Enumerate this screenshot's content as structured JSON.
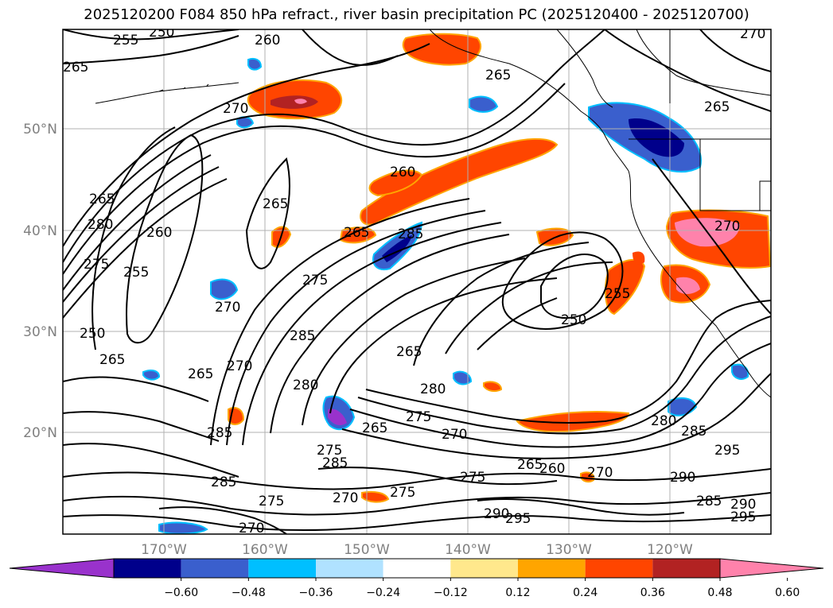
{
  "title": "2025120200 F084 850 hPa refract., river basin precipitation PC (2025120400 - 2025120700)",
  "lat_labels": [
    "50°N",
    "40°N",
    "30°N",
    "20°N"
  ],
  "lon_labels": [
    "170°W",
    "160°W",
    "150°W",
    "140°W",
    "130°W",
    "120°W"
  ],
  "colorbar": {
    "tick_labels": [
      "−0.60",
      "−0.48",
      "−0.36",
      "−0.24",
      "−0.12",
      "0.12",
      "0.24",
      "0.36",
      "0.48",
      "0.60"
    ],
    "colors": [
      "#9932cc",
      "#00008b",
      "#3a5fcd",
      "#00bfff",
      "#b0e2ff",
      "#ffffff",
      "#ffe88c",
      "#ffa500",
      "#ff4500",
      "#b22222",
      "#ff82ab"
    ]
  },
  "contour_labels": [
    "250",
    "255",
    "260",
    "265",
    "270",
    "275",
    "280",
    "285",
    "290",
    "295"
  ]
}
